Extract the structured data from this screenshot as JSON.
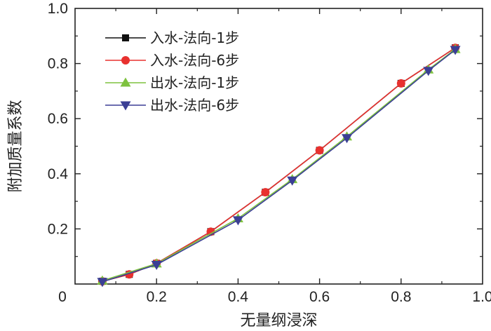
{
  "chart_data": {
    "type": "line",
    "xlabel": "无量纲浸深",
    "ylabel": "附加质量系数",
    "xlim": [
      0,
      1.0
    ],
    "ylim": [
      0,
      1.0
    ],
    "x_ticks": [
      0,
      0.2,
      0.4,
      0.6,
      0.8,
      1.0
    ],
    "x_tick_labels": [
      "0",
      "0.2",
      "0.4",
      "0.6",
      "0.8",
      "1.0"
    ],
    "y_ticks": [
      0.2,
      0.4,
      0.6,
      0.8,
      1.0
    ],
    "y_tick_labels": [
      "0.2",
      "0.4",
      "0.6",
      "0.8",
      "1.0"
    ],
    "legend_position": "top-left",
    "series": [
      {
        "name": "入水-法向-1步",
        "color": "#111111",
        "marker": "square",
        "x": [
          0.067,
          0.133,
          0.2,
          0.333,
          0.467,
          0.6,
          0.8,
          0.933
        ],
        "y": [
          0.01,
          0.035,
          0.075,
          0.19,
          0.333,
          0.485,
          0.728,
          0.857
        ]
      },
      {
        "name": "入水-法向-6步",
        "color": "#e8312f",
        "marker": "circle",
        "x": [
          0.067,
          0.133,
          0.2,
          0.333,
          0.467,
          0.6,
          0.8,
          0.933
        ],
        "y": [
          0.01,
          0.035,
          0.075,
          0.19,
          0.333,
          0.485,
          0.728,
          0.857
        ]
      },
      {
        "name": "出水-法向-1步",
        "color": "#7ec23f",
        "marker": "triangle-up",
        "x": [
          0.067,
          0.2,
          0.4,
          0.533,
          0.667,
          0.867,
          0.933
        ],
        "y": [
          0.012,
          0.074,
          0.238,
          0.38,
          0.535,
          0.778,
          0.852
        ]
      },
      {
        "name": "出水-法向-6步",
        "color": "#3b3f95",
        "marker": "triangle-down",
        "x": [
          0.067,
          0.2,
          0.4,
          0.533,
          0.667,
          0.867,
          0.933
        ],
        "y": [
          0.008,
          0.07,
          0.232,
          0.376,
          0.53,
          0.774,
          0.85
        ]
      }
    ]
  }
}
